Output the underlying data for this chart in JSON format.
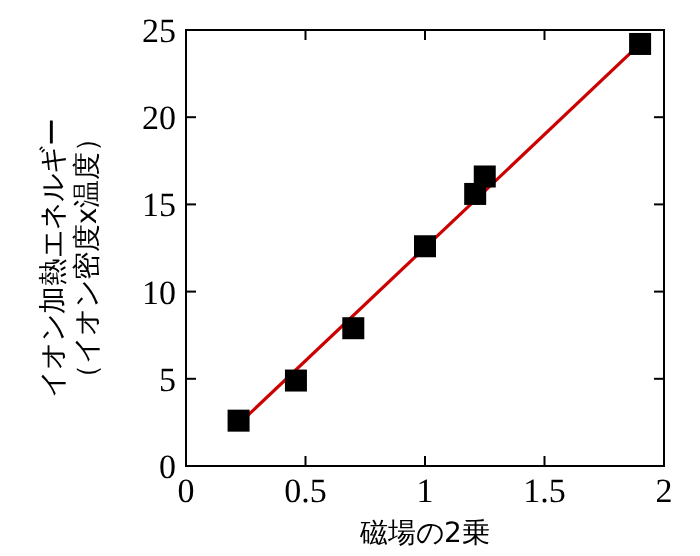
{
  "chart_data": {
    "type": "scatter",
    "xlabel": "磁場の2乗",
    "ylabel": "イオン加熱エネルギー（イオン密度x温度）",
    "xlim": [
      0,
      2
    ],
    "ylim": [
      0,
      25
    ],
    "xticks": [
      0,
      0.5,
      1,
      1.5,
      2
    ],
    "yticks": [
      0,
      5,
      10,
      15,
      20,
      25
    ],
    "grid": false,
    "marker": "square",
    "series": [
      {
        "type": "line",
        "color": "#cc0000",
        "marker": "none",
        "line_style": "solid",
        "x": [
          0.22,
          1.9
        ],
        "values": [
          2.4,
          24.2
        ]
      },
      {
        "color": "#000000",
        "x": [
          0.22,
          0.46,
          0.7,
          1.0,
          1.21,
          1.25,
          1.9
        ],
        "values": [
          2.6,
          4.9,
          7.9,
          12.6,
          15.6,
          16.6,
          24.2
        ]
      }
    ]
  }
}
